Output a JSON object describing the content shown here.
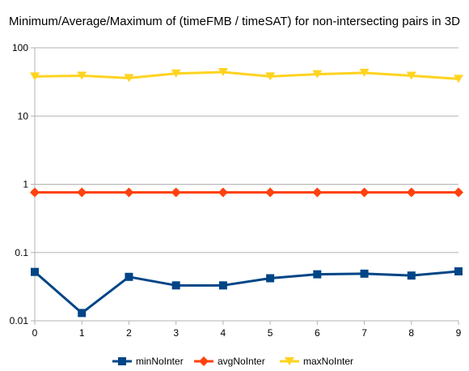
{
  "chart_data": {
    "type": "line",
    "title": "Minimum/Average/Maximum of (timeFMB / timeSAT) for non-intersecting pairs in 3D",
    "xlabel": "",
    "ylabel": "",
    "yscale": "log",
    "ylim": [
      0.01,
      100
    ],
    "xlim": [
      0,
      9
    ],
    "x": [
      0,
      1,
      2,
      3,
      4,
      5,
      6,
      7,
      8,
      9
    ],
    "x_tick_labels": [
      "0",
      "1",
      "2",
      "3",
      "4",
      "5",
      "6",
      "7",
      "8",
      "9"
    ],
    "y_ticks": [
      0.01,
      0.1,
      1,
      10,
      100
    ],
    "y_tick_labels": [
      "0.01",
      "0.1",
      "1",
      "10",
      "100"
    ],
    "grid": "horizontal major",
    "legend_position": "bottom",
    "series": [
      {
        "name": "minNoInter",
        "color": "#004586",
        "marker": "square",
        "values": [
          0.052,
          0.013,
          0.044,
          0.033,
          0.033,
          0.042,
          0.048,
          0.049,
          0.046,
          0.053
        ]
      },
      {
        "name": "avgNoInter",
        "color": "#ff420e",
        "marker": "diamond",
        "values": [
          0.76,
          0.76,
          0.76,
          0.76,
          0.76,
          0.76,
          0.76,
          0.76,
          0.76,
          0.76
        ]
      },
      {
        "name": "maxNoInter",
        "color": "#ffd320",
        "marker": "triangle-down",
        "values": [
          38,
          39,
          36,
          42,
          44,
          38,
          41,
          43,
          39,
          35
        ]
      }
    ]
  }
}
